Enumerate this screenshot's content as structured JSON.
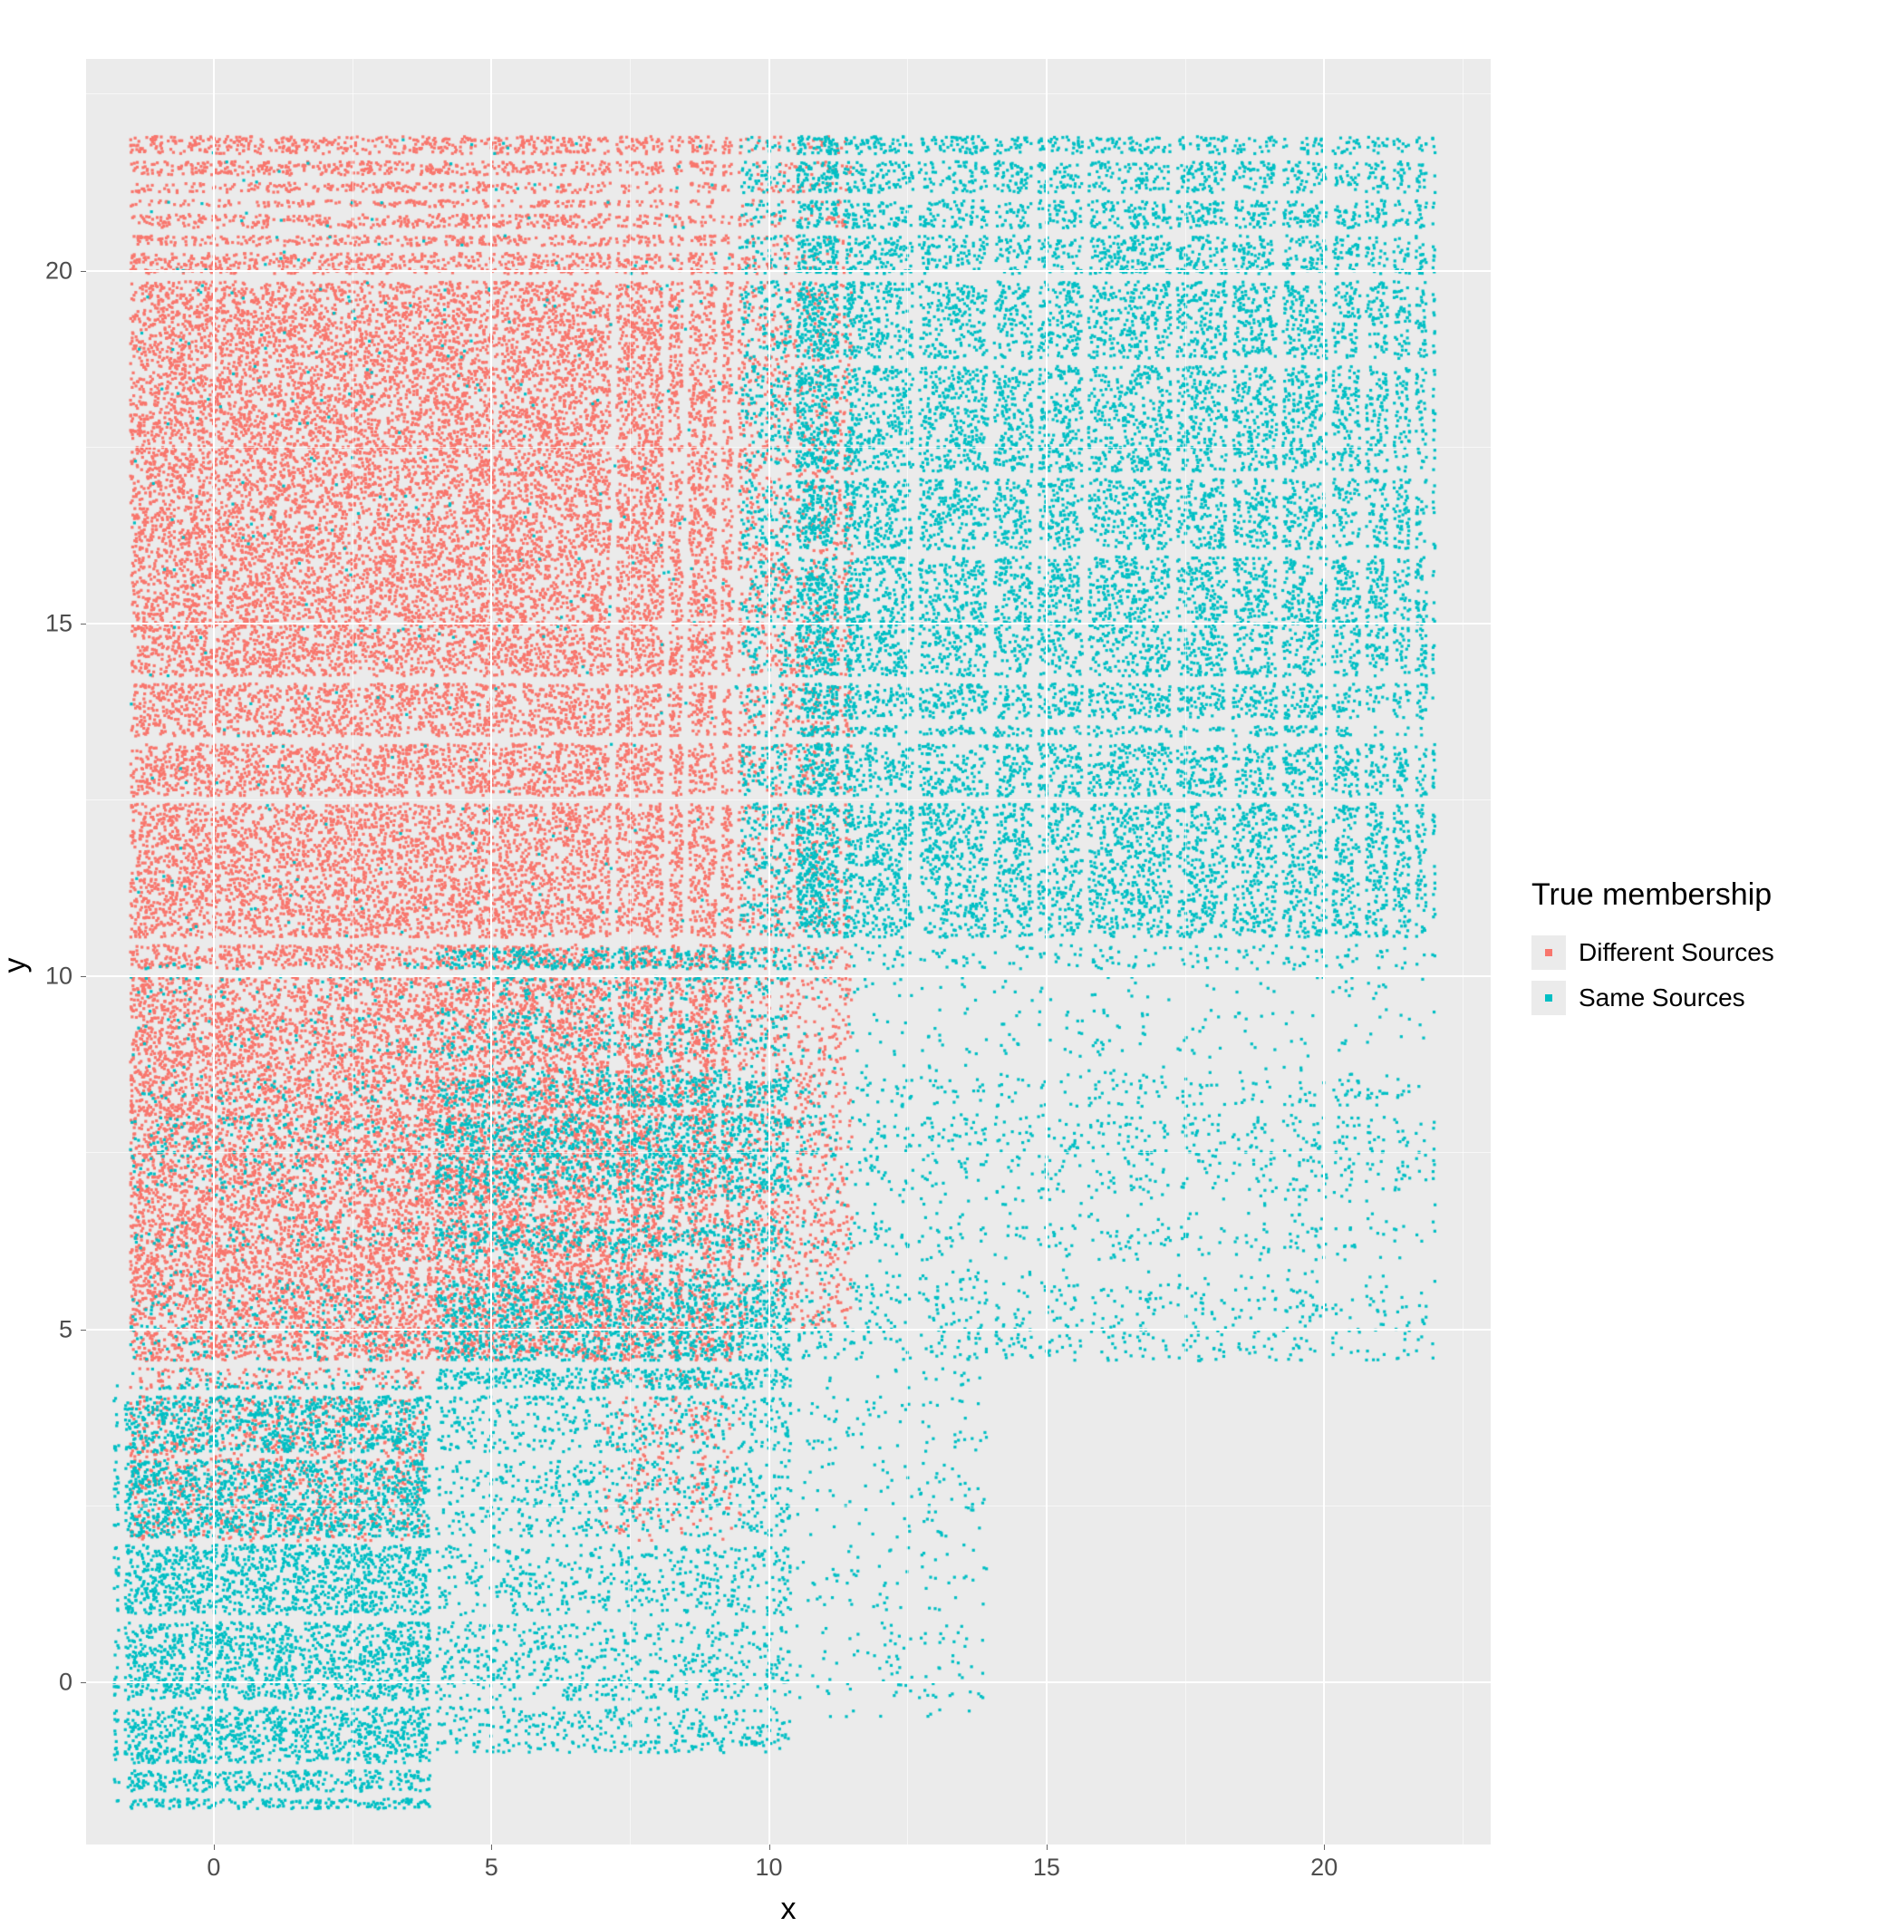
{
  "chart": {
    "type": "scatter",
    "xlabel": "x",
    "ylabel": "y",
    "xlim": [
      -2.3,
      23
    ],
    "ylim": [
      -2.3,
      23
    ],
    "xticks": [
      0,
      5,
      10,
      15,
      20
    ],
    "yticks": [
      0,
      5,
      10,
      15,
      20
    ],
    "xtick_labels": [
      "0",
      "5",
      "10",
      "15",
      "20"
    ],
    "ytick_labels": [
      "0",
      "5",
      "10",
      "15",
      "20"
    ],
    "xminor": [
      2.5,
      7.5,
      12.5,
      17.5,
      22.5
    ],
    "yminor": [
      2.5,
      7.5,
      12.5,
      17.5,
      22.5
    ],
    "panel_bg": "#ebebeb",
    "grid_color": "#ffffff",
    "axis_text_color": "#4d4d4d",
    "axis_title_color": "#000000",
    "axis_text_fontsize": 27,
    "axis_title_fontsize": 34,
    "point_size": 3.2,
    "point_shape": "square",
    "series": [
      {
        "name": "Different Sources",
        "color": "#f8766d",
        "regions": [
          {
            "xrange": [
              -1.5,
              9.5
            ],
            "yrange": [
              4.5,
              21.9
            ],
            "density": 0.97
          },
          {
            "xrange": [
              -1.5,
              3.8
            ],
            "yrange": [
              2.0,
              4.5
            ],
            "density": 0.45
          },
          {
            "xrange": [
              9.5,
              11.5
            ],
            "yrange": [
              5.0,
              21.9
            ],
            "density": 0.35
          },
          {
            "xrange": [
              7.0,
              9.5
            ],
            "yrange": [
              2.0,
              4.5
            ],
            "density": 0.25
          }
        ],
        "h_gap_lines": [
          22.0,
          21.6,
          21.3,
          21.05,
          20.85,
          20.55,
          20.3,
          19.9,
          14.2,
          13.35,
          12.5,
          10.5,
          10.05,
          4.5,
          4.1
        ],
        "v_gap_lines": [
          -1.65,
          7.2,
          8.15,
          8.5,
          9.1,
          9.4
        ],
        "n_points_est": 90000
      },
      {
        "name": "Same Sources",
        "color": "#00bfc4",
        "regions": [
          {
            "xrange": [
              -1.8,
              3.9
            ],
            "yrange": [
              -1.8,
              4.2
            ],
            "density": 0.92
          },
          {
            "xrange": [
              3.9,
              10.5
            ],
            "yrange": [
              4.0,
              10.4
            ],
            "density": 0.82
          },
          {
            "xrange": [
              3.9,
              10.5
            ],
            "yrange": [
              -1.0,
              4.0
            ],
            "density": 0.35
          },
          {
            "xrange": [
              -1.5,
              3.9
            ],
            "yrange": [
              4.0,
              10.2
            ],
            "density": 0.2
          },
          {
            "xrange": [
              10.5,
              22.0
            ],
            "yrange": [
              10.5,
              21.9
            ],
            "density": 0.72
          },
          {
            "xrange": [
              10.5,
              22.0
            ],
            "yrange": [
              4.5,
              10.5
            ],
            "density": 0.22
          },
          {
            "xrange": [
              10.5,
              14.0
            ],
            "yrange": [
              -0.5,
              4.5
            ],
            "density": 0.1
          },
          {
            "xrange": [
              9.5,
              11.5
            ],
            "yrange": [
              10.5,
              21.9
            ],
            "density": 0.45
          },
          {
            "xrange": [
              -1.5,
              9.5
            ],
            "yrange": [
              10.3,
              21.9
            ],
            "density": 0.015
          }
        ],
        "h_gap_lines": [
          22.0,
          21.6,
          21.05,
          20.55,
          19.9,
          18.7,
          17.1,
          16.0,
          14.2,
          13.6,
          13.35,
          12.5,
          10.5,
          10.05,
          9.6,
          8.8,
          8.1,
          6.7,
          5.9,
          4.5,
          4.1,
          3.2,
          2.0,
          0.9,
          -0.3,
          -1.2,
          -1.6,
          -1.85
        ],
        "v_gap_lines": [
          -1.85,
          -1.65,
          3.95,
          10.45,
          11.3,
          12.65,
          14.0,
          14.8,
          15.7,
          17.3,
          18.3,
          19.2,
          20.1,
          20.7,
          21.2,
          21.6,
          21.9
        ],
        "row_sparsity": {
          "h_lines": [
            8.8,
            9.2,
            9.7,
            6.7,
            5.9
          ],
          "sparsity": 0.6
        },
        "n_points_est": 110000
      }
    ],
    "legend": {
      "title": "True membership",
      "items": [
        {
          "label": "Different Sources",
          "color": "#f8766d"
        },
        {
          "label": "Same Sources",
          "color": "#00bfc4"
        }
      ],
      "title_fontsize": 34,
      "label_fontsize": 28,
      "key_bg": "#ebebeb"
    }
  }
}
